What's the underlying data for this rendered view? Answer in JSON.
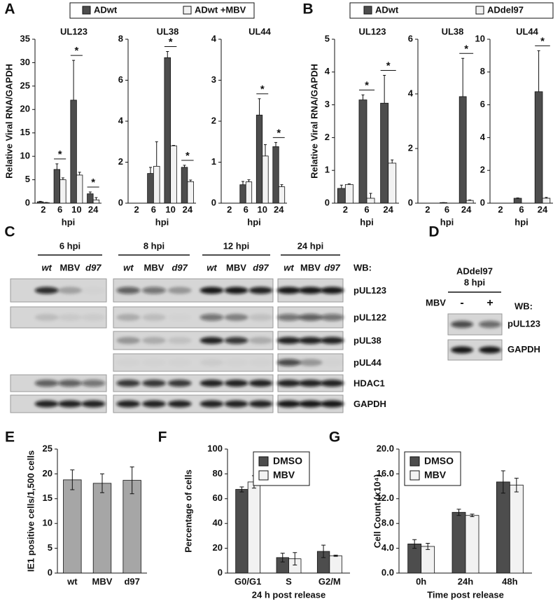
{
  "panel_A": {
    "label": "A",
    "legend": [
      {
        "name": "ADwt",
        "color": "#4d4d4d"
      },
      {
        "name": "ADwt +MBV",
        "color": "#f2f2f2"
      }
    ]
  },
  "panel_B": {
    "label": "B",
    "legend": [
      {
        "name": "ADwt",
        "color": "#4d4d4d"
      },
      {
        "name": "ADdel97",
        "color": "#f2f2f2"
      }
    ]
  },
  "chart_data": [
    {
      "type": "bar",
      "title": "UL123",
      "categories": [
        "2",
        "6",
        "10",
        "24"
      ],
      "series": [
        {
          "values": [
            0.3,
            7.2,
            22,
            2.0
          ],
          "errors": [
            0.1,
            1.2,
            8.5,
            0.4
          ]
        },
        {
          "values": [
            0.1,
            5.0,
            6.0,
            0.7
          ],
          "errors": [
            0.05,
            0.4,
            0.6,
            0.5
          ]
        }
      ],
      "ylim": [
        0,
        35
      ],
      "yticks": [
        0,
        5,
        10,
        15,
        20,
        25,
        30,
        35
      ],
      "ylabel": "Relative Viral RNA/GAPDH",
      "xlabel": "hpi",
      "errorbars": "up",
      "significant": [
        false,
        true,
        true,
        true
      ],
      "marker": "*"
    },
    {
      "type": "bar",
      "title": "UL38",
      "categories": [
        "2",
        "6",
        "10",
        "24"
      ],
      "series": [
        {
          "values": [
            0,
            1.45,
            7.1,
            1.75
          ],
          "errors": [
            0,
            0.3,
            0.3,
            0.1
          ]
        },
        {
          "values": [
            0,
            1.8,
            2.8,
            1.05
          ],
          "errors": [
            0,
            1.2,
            0.02,
            0.08
          ]
        }
      ],
      "ylim": [
        0,
        8
      ],
      "yticks": [
        0,
        2,
        4,
        6,
        8
      ],
      "xlabel": "hpi",
      "errorbars": "up",
      "significant": [
        false,
        false,
        true,
        true
      ],
      "marker": "*"
    },
    {
      "type": "bar",
      "title": "UL44",
      "categories": [
        "2",
        "6",
        "10",
        "24"
      ],
      "series": [
        {
          "values": [
            0,
            0.45,
            2.15,
            1.38
          ],
          "errors": [
            0,
            0.08,
            0.4,
            0.1
          ]
        },
        {
          "values": [
            0,
            0.52,
            1.15,
            0.4
          ],
          "errors": [
            0,
            0.05,
            0.28,
            0.05
          ]
        }
      ],
      "ylim": [
        0,
        4
      ],
      "yticks": [
        0,
        1,
        2,
        3,
        4
      ],
      "xlabel": "hpi",
      "errorbars": "up",
      "significant": [
        false,
        false,
        true,
        true
      ],
      "marker": "*"
    },
    {
      "type": "bar",
      "title": "UL123",
      "categories": [
        "2",
        "6",
        "24"
      ],
      "series": [
        {
          "values": [
            0.45,
            3.15,
            3.05
          ],
          "errors": [
            0.1,
            0.15,
            0.85
          ]
        },
        {
          "values": [
            0.57,
            0.15,
            1.22
          ],
          "errors": [
            0.02,
            0.15,
            0.1
          ]
        }
      ],
      "ylim": [
        0,
        5
      ],
      "yticks": [
        0,
        1,
        2,
        3,
        4,
        5
      ],
      "ylabel": "Relative Viral RNA/GAPDH",
      "xlabel": "hpi",
      "errorbars": "up",
      "significant": [
        false,
        true,
        true
      ],
      "marker": "*"
    },
    {
      "type": "bar",
      "title": "UL38",
      "categories": [
        "2",
        "6",
        "24"
      ],
      "series": [
        {
          "values": [
            0,
            0.02,
            3.9
          ],
          "errors": [
            0,
            0,
            1.4
          ]
        },
        {
          "values": [
            0,
            0,
            0.1
          ],
          "errors": [
            0,
            0,
            0.02
          ]
        }
      ],
      "ylim": [
        0,
        6
      ],
      "yticks": [
        0,
        2,
        4,
        6
      ],
      "xlabel": "hpi",
      "errorbars": "up",
      "significant": [
        false,
        false,
        true
      ],
      "marker": "*"
    },
    {
      "type": "bar",
      "title": "UL44",
      "categories": [
        "2",
        "6",
        "24"
      ],
      "series": [
        {
          "values": [
            0,
            0.3,
            6.8
          ],
          "errors": [
            0,
            0.02,
            2.5
          ]
        },
        {
          "values": [
            0,
            0,
            0.3
          ],
          "errors": [
            0,
            0,
            0.05
          ]
        }
      ],
      "ylim": [
        0,
        10
      ],
      "yticks": [
        0,
        2,
        4,
        6,
        8,
        10
      ],
      "xlabel": "hpi",
      "errorbars": "up",
      "significant": [
        false,
        false,
        true
      ],
      "marker": "*"
    },
    {
      "type": "bar",
      "label": "E",
      "categories": [
        "wt",
        "MBV",
        "d97"
      ],
      "series": [
        {
          "color": "#a6a6a6",
          "values": [
            18.8,
            18.1,
            18.7
          ],
          "errors": [
            2.0,
            1.9,
            2.7
          ]
        }
      ],
      "ylim": [
        0,
        25
      ],
      "yticks": [
        0,
        5,
        10,
        15,
        20,
        25
      ],
      "ylabel": "IE1 positive cells/1,500 cells",
      "errorbars": "both"
    },
    {
      "type": "bar",
      "label": "F",
      "categories": [
        "G0/G1",
        "S",
        "G2/M"
      ],
      "series": [
        {
          "name": "DMSO",
          "color": "#4d4d4d",
          "values": [
            67.5,
            12.5,
            17.5
          ],
          "errors": [
            2,
            3.5,
            5
          ]
        },
        {
          "name": "MBV",
          "color": "#f2f2f2",
          "values": [
            73.5,
            11.5,
            14
          ],
          "errors": [
            5,
            5,
            0.5
          ]
        }
      ],
      "ylim": [
        0,
        100
      ],
      "yticks": [
        0,
        20,
        40,
        60,
        80,
        100
      ],
      "ylabel": "Percentage of cells",
      "xlabel": "24 h post release",
      "errorbars": "both",
      "legend": "upper center"
    },
    {
      "type": "bar",
      "label": "G",
      "categories": [
        "0h",
        "24h",
        "48h"
      ],
      "series": [
        {
          "name": "DMSO",
          "color": "#4d4d4d",
          "values": [
            4.7,
            9.8,
            14.7
          ],
          "errors": [
            0.7,
            0.5,
            1.8
          ]
        },
        {
          "name": "MBV",
          "color": "#f2f2f2",
          "values": [
            4.3,
            9.3,
            14.2
          ],
          "errors": [
            0.5,
            0.2,
            1.1
          ]
        }
      ],
      "ylim": [
        0,
        20
      ],
      "yticks": [
        {
          "value": 0,
          "label": "0.0"
        },
        {
          "value": 4,
          "label": "4.0"
        },
        {
          "value": 8,
          "label": "8.0"
        },
        {
          "value": 12,
          "label": "12.0"
        },
        {
          "value": 16,
          "label": "16.0"
        },
        {
          "value": 20,
          "label": "20.0"
        }
      ],
      "ylabel": "Cell Count (x10⁴)",
      "xlabel": "Time post release",
      "errorbars": "both",
      "legend": "upper left"
    }
  ],
  "panel_C": {
    "label": "C",
    "groups": [
      {
        "title": "6 hpi",
        "lanes": [
          "wt",
          "MBV",
          "d97"
        ]
      },
      {
        "title": "8 hpi",
        "lanes": [
          "wt",
          "MBV",
          "d97"
        ]
      },
      {
        "title": "12 hpi",
        "lanes": [
          "wt",
          "MBV",
          "d97"
        ]
      },
      {
        "title": "24 hpi",
        "lanes": [
          "wt",
          "MBV",
          "d97"
        ]
      }
    ],
    "wb": "WB:",
    "rows": [
      "pUL123",
      "pUL122",
      "pUL38",
      "pUL44",
      "HDAC1",
      "GAPDH"
    ]
  },
  "panel_D": {
    "label": "D",
    "title": "ADdel97",
    "subtitle": "8 hpi",
    "treatment": "MBV",
    "conditions": [
      "-",
      "+"
    ],
    "wb": "WB:",
    "rows": [
      "pUL123",
      "GAPDH"
    ]
  }
}
